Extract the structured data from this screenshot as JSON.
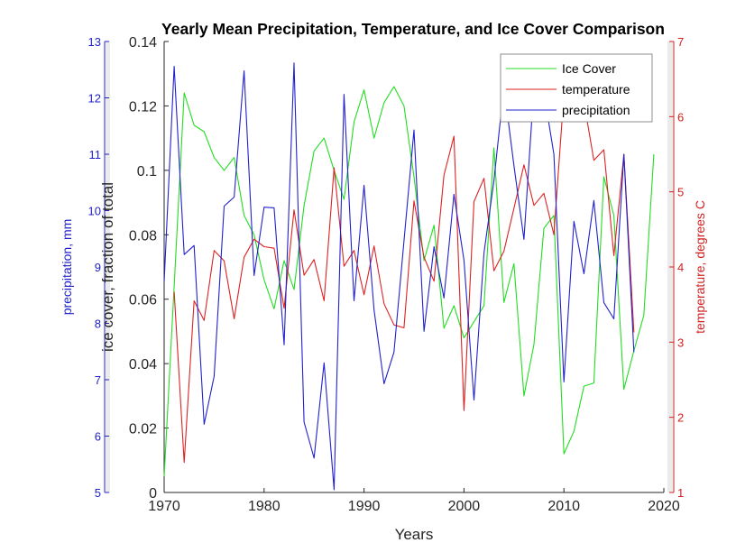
{
  "chart_data": {
    "type": "line",
    "title": "Yearly Mean Precipitation, Temperature, and Ice Cover Comparison",
    "xlabel": "Years",
    "xlim": [
      1970,
      2020
    ],
    "xticks": [
      1970,
      1980,
      1990,
      2000,
      2010,
      2020
    ],
    "xtick_labels": [
      "1970",
      "1980",
      "1990",
      "2000",
      "2010",
      "2020"
    ],
    "grid": false,
    "legend_position": "top-right",
    "axes": {
      "ice": {
        "label": "ice cover, fraction of total",
        "ylim": [
          0,
          0.14
        ],
        "ticks": [
          0,
          0.02,
          0.04,
          0.06,
          0.08,
          0.1,
          0.12,
          0.14
        ],
        "tick_labels": [
          "0",
          "0.02",
          "0.04",
          "0.06",
          "0.08",
          "0.1",
          "0.12",
          "0.14"
        ],
        "color": "#262626",
        "side": "left-inner"
      },
      "precipitation": {
        "label": "precipitation, mm",
        "ylim": [
          5,
          13
        ],
        "ticks": [
          5,
          6,
          7,
          8,
          9,
          10,
          11,
          12,
          13
        ],
        "tick_labels": [
          "5",
          "6",
          "7",
          "8",
          "9",
          "10",
          "11",
          "12",
          "13"
        ],
        "color": "#2020c8",
        "side": "left-outer"
      },
      "temperature": {
        "label": "temperature, degrees C",
        "ylim": [
          1,
          7
        ],
        "ticks": [
          1,
          2,
          3,
          4,
          5,
          6,
          7
        ],
        "tick_labels": [
          "1",
          "2",
          "3",
          "4",
          "5",
          "6",
          "7"
        ],
        "color": "#d02020",
        "side": "right"
      }
    },
    "series": [
      {
        "name": "Ice Cover",
        "axis": "ice",
        "color": "#22dd22",
        "x": [
          1970,
          1971,
          1972,
          1973,
          1974,
          1975,
          1976,
          1977,
          1978,
          1979,
          1980,
          1981,
          1982,
          1983,
          1984,
          1985,
          1986,
          1987,
          1988,
          1989,
          1990,
          1991,
          1992,
          1993,
          1994,
          1995,
          1996,
          1997,
          1998,
          1999,
          2000,
          2001,
          2002,
          2003,
          2004,
          2005,
          2006,
          2007,
          2008,
          2009,
          2010,
          2011,
          2012,
          2013,
          2014,
          2015,
          2016,
          2017,
          2018,
          2019
        ],
        "values": [
          0.005,
          0.064,
          0.124,
          0.114,
          0.112,
          0.104,
          0.1,
          0.104,
          0.086,
          0.08,
          0.066,
          0.057,
          0.072,
          0.063,
          0.089,
          0.106,
          0.11,
          0.1,
          0.091,
          0.115,
          0.125,
          0.11,
          0.121,
          0.126,
          0.12,
          0.098,
          0.072,
          0.083,
          0.051,
          0.058,
          0.048,
          0.053,
          0.058,
          0.107,
          0.059,
          0.071,
          0.03,
          0.046,
          0.082,
          0.086,
          0.012,
          0.019,
          0.033,
          0.034,
          0.098,
          0.086,
          0.032,
          0.044,
          0.055,
          0.105
        ]
      },
      {
        "name": "temperature",
        "axis": "temperature",
        "color": "#dd2222",
        "x": [
          1971,
          1972,
          1973,
          1974,
          1975,
          1976,
          1977,
          1978,
          1979,
          1980,
          1981,
          1982,
          1983,
          1984,
          1985,
          1986,
          1987,
          1988,
          1989,
          1990,
          1991,
          1992,
          1993,
          1994,
          1995,
          1996,
          1997,
          1998,
          1999,
          2000,
          2001,
          2002,
          2003,
          2004,
          2005,
          2006,
          2007,
          2008,
          2009,
          2010,
          2011,
          2012,
          2013,
          2014,
          2015,
          2016,
          2017
        ],
        "values": [
          3.67,
          1.4,
          3.55,
          3.29,
          4.22,
          4.08,
          3.31,
          4.13,
          4.37,
          4.27,
          4.25,
          3.45,
          4.76,
          3.89,
          4.1,
          3.55,
          5.32,
          4.01,
          4.22,
          3.63,
          4.28,
          3.51,
          3.23,
          3.19,
          4.88,
          4.13,
          3.81,
          5.22,
          5.74,
          2.09,
          4.87,
          5.18,
          3.95,
          4.21,
          4.78,
          5.36,
          4.82,
          4.98,
          4.43,
          6.3,
          6.5,
          6.2,
          5.42,
          5.56,
          4.15,
          5.5,
          3.13
        ]
      },
      {
        "name": "precipitation",
        "axis": "precipitation",
        "color": "#2222cc",
        "x": [
          1970,
          1971,
          1972,
          1973,
          1974,
          1975,
          1976,
          1977,
          1978,
          1979,
          1980,
          1981,
          1982,
          1983,
          1984,
          1985,
          1986,
          1987,
          1988,
          1989,
          1990,
          1991,
          1992,
          1993,
          1994,
          1995,
          1996,
          1997,
          1998,
          1999,
          2000,
          2001,
          2002,
          2003,
          2004,
          2005,
          2006,
          2007,
          2008,
          2009,
          2010,
          2011,
          2012,
          2013,
          2014,
          2015,
          2016,
          2017
        ],
        "values": [
          8.74,
          12.56,
          9.22,
          9.38,
          6.21,
          7.06,
          10.08,
          10.24,
          12.48,
          8.85,
          10.06,
          10.05,
          7.62,
          12.62,
          6.25,
          5.61,
          7.3,
          5.05,
          12.06,
          8.4,
          10.45,
          8.24,
          6.93,
          7.49,
          9.46,
          11.43,
          7.86,
          9.36,
          8.45,
          10.29,
          9.12,
          6.64,
          9.25,
          10.53,
          12.2,
          10.8,
          9.49,
          12.2,
          12.1,
          11.0,
          6.96,
          9.81,
          8.88,
          10.18,
          8.37,
          8.08,
          11.0,
          7.49
        ]
      }
    ],
    "legend": [
      "Ice Cover",
      "temperature",
      "precipitation"
    ]
  }
}
